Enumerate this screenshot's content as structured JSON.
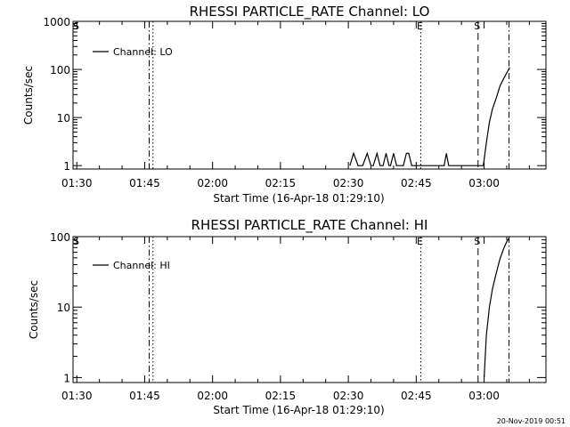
{
  "chart_data": [
    {
      "type": "line",
      "title": "RHESSI PARTICLE_RATE Channel: LO",
      "xlabel": "Start Time (16-Apr-18 01:29:10)",
      "ylabel": "Counts/sec",
      "yscale": "log",
      "ylim": [
        0.85,
        1000
      ],
      "xlim": [
        "01:29:10",
        "03:13:40"
      ],
      "x_ticks": [
        "01:30",
        "01:45",
        "02:00",
        "02:15",
        "02:30",
        "02:45",
        "03:00"
      ],
      "y_ticks": [
        "1",
        "10",
        "100",
        "1000"
      ],
      "legend": {
        "position": "top-left",
        "entries": [
          "Channel: LO"
        ]
      },
      "markers": [
        {
          "label": "S",
          "time": "01:29:10",
          "style": "solid"
        },
        {
          "label": "",
          "time": "01:46:00",
          "style": "dashdot"
        },
        {
          "label": "",
          "time": "01:46:50",
          "style": "dotted"
        },
        {
          "label": "E",
          "time": "02:46:00",
          "style": "dotted"
        },
        {
          "label": "S",
          "time": "02:58:40",
          "style": "dashed"
        },
        {
          "label": "",
          "time": "03:05:30",
          "style": "dashdot"
        }
      ],
      "series": [
        {
          "points": [
            [
              "02:30:20",
              1
            ],
            [
              "02:31:10",
              1.8
            ],
            [
              "02:32:10",
              1
            ],
            [
              "02:33:10",
              1
            ],
            [
              "02:34:10",
              1.8
            ],
            [
              "02:35:00",
              1
            ],
            [
              "02:35:30",
              1
            ],
            [
              "02:36:20",
              1.8
            ],
            [
              "02:37:00",
              1
            ],
            [
              "02:37:40",
              1
            ],
            [
              "02:38:20",
              1.8
            ],
            [
              "02:39:00",
              1
            ],
            [
              "02:39:20",
              1
            ],
            [
              "02:40:00",
              1.8
            ],
            [
              "02:40:40",
              1
            ],
            [
              "02:42:10",
              1
            ],
            [
              "02:42:50",
              1.8
            ],
            [
              "02:43:20",
              1.8
            ],
            [
              "02:44:00",
              1
            ],
            [
              "02:51:10",
              1
            ],
            [
              "02:51:40",
              1.8
            ],
            [
              "02:52:10",
              1
            ],
            [
              "02:59:50",
              1
            ],
            [
              "03:00:30",
              3
            ],
            [
              "03:01:10",
              8
            ],
            [
              "03:01:50",
              15
            ],
            [
              "03:02:40",
              25
            ],
            [
              "03:03:30",
              45
            ],
            [
              "03:04:20",
              65
            ],
            [
              "03:05:10",
              90
            ],
            [
              "03:05:40",
              110
            ]
          ]
        }
      ]
    },
    {
      "type": "line",
      "title": "RHESSI PARTICLE_RATE Channel: HI",
      "xlabel": "Start Time (16-Apr-18 01:29:10)",
      "ylabel": "Counts/sec",
      "yscale": "log",
      "ylim": [
        0.85,
        100
      ],
      "xlim": [
        "01:29:10",
        "03:13:40"
      ],
      "x_ticks": [
        "01:30",
        "01:45",
        "02:00",
        "02:15",
        "02:30",
        "02:45",
        "03:00"
      ],
      "y_ticks": [
        "1",
        "10",
        "100"
      ],
      "legend": {
        "position": "top-left",
        "entries": [
          "Channel: HI"
        ]
      },
      "markers": [
        {
          "label": "S",
          "time": "01:29:10",
          "style": "solid"
        },
        {
          "label": "",
          "time": "01:46:00",
          "style": "dashdot"
        },
        {
          "label": "",
          "time": "01:46:50",
          "style": "dotted"
        },
        {
          "label": "E",
          "time": "02:46:00",
          "style": "dotted"
        },
        {
          "label": "S",
          "time": "02:58:40",
          "style": "dashed"
        },
        {
          "label": "",
          "time": "03:05:30",
          "style": "dashdot"
        }
      ],
      "series": [
        {
          "points": [
            [
              "03:00:00",
              1
            ],
            [
              "03:00:30",
              4
            ],
            [
              "03:01:10",
              10
            ],
            [
              "03:01:50",
              18
            ],
            [
              "03:02:40",
              30
            ],
            [
              "03:03:30",
              48
            ],
            [
              "03:04:20",
              68
            ],
            [
              "03:05:00",
              85
            ],
            [
              "03:05:30",
              95
            ]
          ]
        }
      ]
    }
  ],
  "footer": {
    "date": "20-Nov-2019 00:51"
  }
}
